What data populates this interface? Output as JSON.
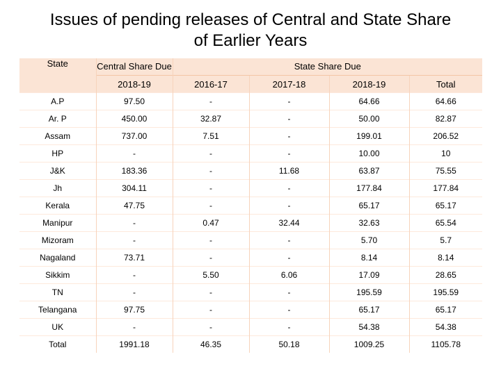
{
  "title": {
    "line1": "Issues of pending releases of Central and State Share",
    "line2": "of Earlier Years"
  },
  "table": {
    "header": {
      "state": "State",
      "central_share_due": "Central Share Due",
      "state_share_due": "State Share Due",
      "years": [
        "2018-19",
        "2016-17",
        "2017-18",
        "2018-19",
        "Total"
      ]
    },
    "rows": [
      {
        "state": "A.P",
        "central": "97.50",
        "y1617": "-",
        "y1718": "-",
        "y1819": "64.66",
        "total": "64.66"
      },
      {
        "state": "Ar. P",
        "central": "450.00",
        "y1617": "32.87",
        "y1718": "-",
        "y1819": "50.00",
        "total": "82.87"
      },
      {
        "state": "Assam",
        "central": "737.00",
        "y1617": "7.51",
        "y1718": "-",
        "y1819": "199.01",
        "total": "206.52"
      },
      {
        "state": "HP",
        "central": "-",
        "y1617": "-",
        "y1718": "-",
        "y1819": "10.00",
        "total": "10"
      },
      {
        "state": "J&K",
        "central": "183.36",
        "y1617": "-",
        "y1718": "11.68",
        "y1819": "63.87",
        "total": "75.55"
      },
      {
        "state": "Jh",
        "central": "304.11",
        "y1617": "-",
        "y1718": "-",
        "y1819": "177.84",
        "total": "177.84"
      },
      {
        "state": "Kerala",
        "central": "47.75",
        "y1617": "-",
        "y1718": "-",
        "y1819": "65.17",
        "total": "65.17"
      },
      {
        "state": "Manipur",
        "central": "-",
        "y1617": "0.47",
        "y1718": "32.44",
        "y1819": "32.63",
        "total": "65.54"
      },
      {
        "state": "Mizoram",
        "central": "-",
        "y1617": "-",
        "y1718": "-",
        "y1819": "5.70",
        "total": "5.7"
      },
      {
        "state": "Nagaland",
        "central": "73.71",
        "y1617": "-",
        "y1718": "-",
        "y1819": "8.14",
        "total": "8.14"
      },
      {
        "state": "Sikkim",
        "central": "-",
        "y1617": "5.50",
        "y1718": "6.06",
        "y1819": "17.09",
        "total": "28.65"
      },
      {
        "state": "TN",
        "central": "-",
        "y1617": "-",
        "y1718": "-",
        "y1819": "195.59",
        "total": "195.59"
      },
      {
        "state": "Telangana",
        "central": "97.75",
        "y1617": "-",
        "y1718": "-",
        "y1819": "65.17",
        "total": "65.17"
      },
      {
        "state": "UK",
        "central": "-",
        "y1617": "-",
        "y1718": "-",
        "y1819": "54.38",
        "total": "54.38"
      },
      {
        "state": "Total",
        "central": "1991.18",
        "y1617": "46.35",
        "y1718": "50.18",
        "y1819": "1009.25",
        "total": "1105.78"
      }
    ]
  },
  "colors": {
    "header_bg": "#fbe4d5",
    "grid_line": "#f3c5a6"
  }
}
